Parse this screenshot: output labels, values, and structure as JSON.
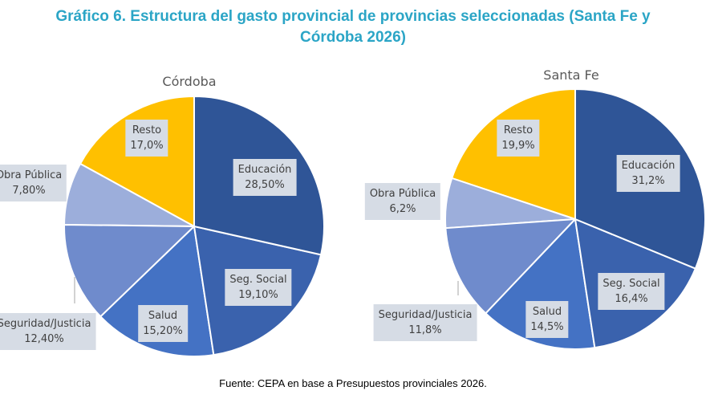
{
  "title_line1": "Gráfico 6. Estructura del gasto provincial de provincias seleccionadas (Santa Fe y",
  "title_line2": "Córdoba 2026)",
  "source": "Fuente: CEPA en base a Presupuestos provinciales 2026.",
  "chart_data": [
    {
      "type": "pie",
      "title": "Córdoba",
      "categories": [
        "Educación",
        "Seg. Social",
        "Salud",
        "Seguridad/Justicia",
        "Obra Pública",
        "Resto"
      ],
      "values": [
        28.5,
        19.1,
        15.2,
        12.4,
        7.8,
        17.0
      ],
      "labels": [
        "28,50%",
        "19,10%",
        "15,20%",
        "12,40%",
        "7,80%",
        "17,0%"
      ]
    },
    {
      "type": "pie",
      "title": "Santa Fe",
      "categories": [
        "Educación",
        "Seg. Social",
        "Salud",
        "Seguridad/Justicia",
        "Obra Pública",
        "Resto"
      ],
      "values": [
        31.2,
        16.4,
        14.5,
        11.8,
        6.2,
        19.9
      ],
      "labels": [
        "31,2%",
        "16,4%",
        "14,5%",
        "11,8%",
        "6,2%",
        "19,9%"
      ]
    }
  ],
  "colors": [
    "#2F5597",
    "#3A62AD",
    "#4472C4",
    "#6F8BCC",
    "#9CAEDB",
    "#FFC000"
  ]
}
